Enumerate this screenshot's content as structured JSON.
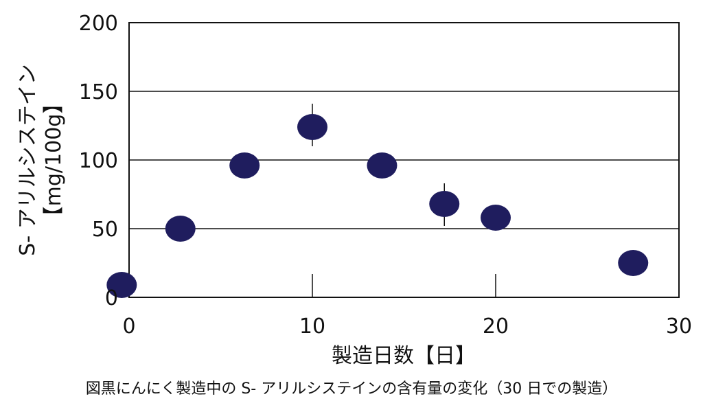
{
  "chart_data": {
    "type": "scatter",
    "xlabel": "製造日数【日】",
    "ylabel_line1": "S- アリルシステイン",
    "ylabel_line2": "【mg/100g】",
    "xlim": [
      0,
      30
    ],
    "ylim": [
      0,
      200
    ],
    "x_ticks": [
      0,
      10,
      20,
      30
    ],
    "y_ticks": [
      0,
      50,
      100,
      150,
      200
    ],
    "grid": "horizontal",
    "marker_color": "#1f1d5e",
    "series": [
      {
        "points": [
          {
            "x": -0.4,
            "y": 9
          },
          {
            "x": 2.8,
            "y": 50
          },
          {
            "x": 6.3,
            "y": 96
          },
          {
            "x": 10.0,
            "y": 124,
            "err_low": 110,
            "err_high": 141
          },
          {
            "x": 13.8,
            "y": 96
          },
          {
            "x": 17.2,
            "y": 68,
            "err_low": 52,
            "err_high": 83
          },
          {
            "x": 20.0,
            "y": 58
          },
          {
            "x": 27.5,
            "y": 25
          }
        ]
      }
    ],
    "reference_lines": [
      {
        "x": 10,
        "y_from": 0,
        "y_to": 17
      },
      {
        "x": 20,
        "y_from": 0,
        "y_to": 17
      }
    ]
  },
  "caption": "図黒にんにく製造中の S- アリルシステインの含有量の変化（30 日での製造）"
}
